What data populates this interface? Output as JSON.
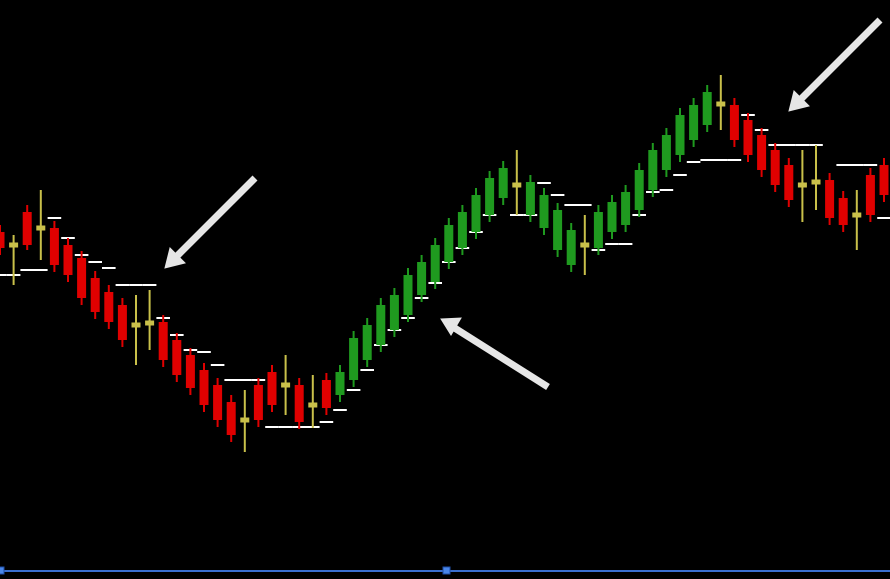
{
  "chart_data": {
    "type": "candlestick",
    "categories": [
      null,
      null,
      null,
      null,
      null,
      null,
      null,
      null,
      null,
      null,
      null,
      null,
      null,
      null,
      null,
      null,
      null,
      null,
      null,
      null,
      null,
      null,
      null,
      null,
      null,
      null,
      null,
      null,
      null,
      null,
      null,
      null,
      null,
      null,
      null,
      null,
      null,
      null,
      null,
      null,
      null,
      null,
      null,
      null,
      null,
      null,
      null,
      null,
      null,
      null,
      null,
      null,
      null,
      null,
      null,
      null,
      null,
      null,
      null,
      null,
      null,
      null,
      null,
      null,
      null,
      null
    ],
    "open": [
      347,
      334,
      367,
      351,
      351,
      334,
      321,
      301,
      287,
      274,
      254,
      256,
      257,
      239,
      224,
      209,
      194,
      177,
      159,
      194,
      207,
      194,
      194,
      174,
      199,
      184,
      199,
      219,
      234,
      249,
      264,
      284,
      297,
      317,
      331,
      347,
      364,
      381,
      394,
      364,
      351,
      329,
      314,
      334,
      331,
      347,
      354,
      369,
      389,
      409,
      424,
      439,
      454,
      475,
      474,
      459,
      444,
      429,
      414,
      394,
      397,
      399,
      381,
      364,
      404,
      414
    ],
    "high": [
      354,
      344,
      374,
      389,
      358,
      341,
      328,
      308,
      294,
      281,
      284,
      289,
      264,
      246,
      231,
      216,
      201,
      184,
      189,
      201,
      214,
      224,
      201,
      204,
      206,
      214,
      248,
      261,
      281,
      291,
      311,
      324,
      341,
      361,
      374,
      391,
      408,
      418,
      429,
      404,
      391,
      376,
      356,
      364,
      374,
      384,
      394,
      416,
      436,
      451,
      471,
      481,
      494,
      504,
      481,
      466,
      451,
      436,
      421,
      429,
      434,
      406,
      388,
      389,
      411,
      421
    ],
    "low": [
      324,
      294,
      329,
      319,
      307,
      297,
      274,
      260,
      250,
      232,
      214,
      229,
      212,
      197,
      184,
      167,
      152,
      137,
      127,
      152,
      167,
      164,
      150,
      151,
      164,
      177,
      192,
      212,
      227,
      242,
      257,
      277,
      290,
      310,
      324,
      340,
      357,
      374,
      364,
      357,
      344,
      322,
      307,
      304,
      324,
      340,
      347,
      362,
      382,
      402,
      417,
      432,
      447,
      449,
      432,
      417,
      402,
      387,
      372,
      357,
      369,
      354,
      347,
      329,
      357,
      377
    ],
    "close": [
      331,
      334,
      334,
      351,
      314,
      304,
      281,
      267,
      257,
      239,
      254,
      256,
      219,
      204,
      191,
      174,
      159,
      144,
      159,
      159,
      174,
      194,
      157,
      174,
      171,
      207,
      241,
      254,
      274,
      284,
      304,
      317,
      334,
      354,
      367,
      384,
      401,
      411,
      394,
      397,
      384,
      369,
      349,
      334,
      367,
      377,
      387,
      409,
      429,
      444,
      464,
      474,
      487,
      475,
      439,
      424,
      409,
      394,
      379,
      394,
      397,
      361,
      354,
      364,
      364,
      384
    ],
    "stops": [
      304,
      304,
      309,
      309,
      361,
      341,
      324,
      317,
      311,
      294,
      294,
      294,
      261,
      244,
      229,
      227,
      214,
      199,
      199,
      199,
      152,
      152,
      152,
      152,
      157,
      169,
      189,
      209,
      234,
      249,
      261,
      281,
      296,
      317,
      331,
      347,
      364,
      null,
      364,
      364,
      396,
      384,
      374,
      374,
      329,
      335,
      335,
      364,
      387,
      389,
      404,
      417,
      419,
      419,
      419,
      464,
      449,
      434,
      434,
      434,
      434,
      null,
      414,
      414,
      414,
      361
    ],
    "ylim": [
      0,
      579
    ],
    "up_color": "#1f9a1f",
    "down_color": "#e00000",
    "doji_color": "#c9c04a",
    "stop_color": "#ffffff"
  }
}
